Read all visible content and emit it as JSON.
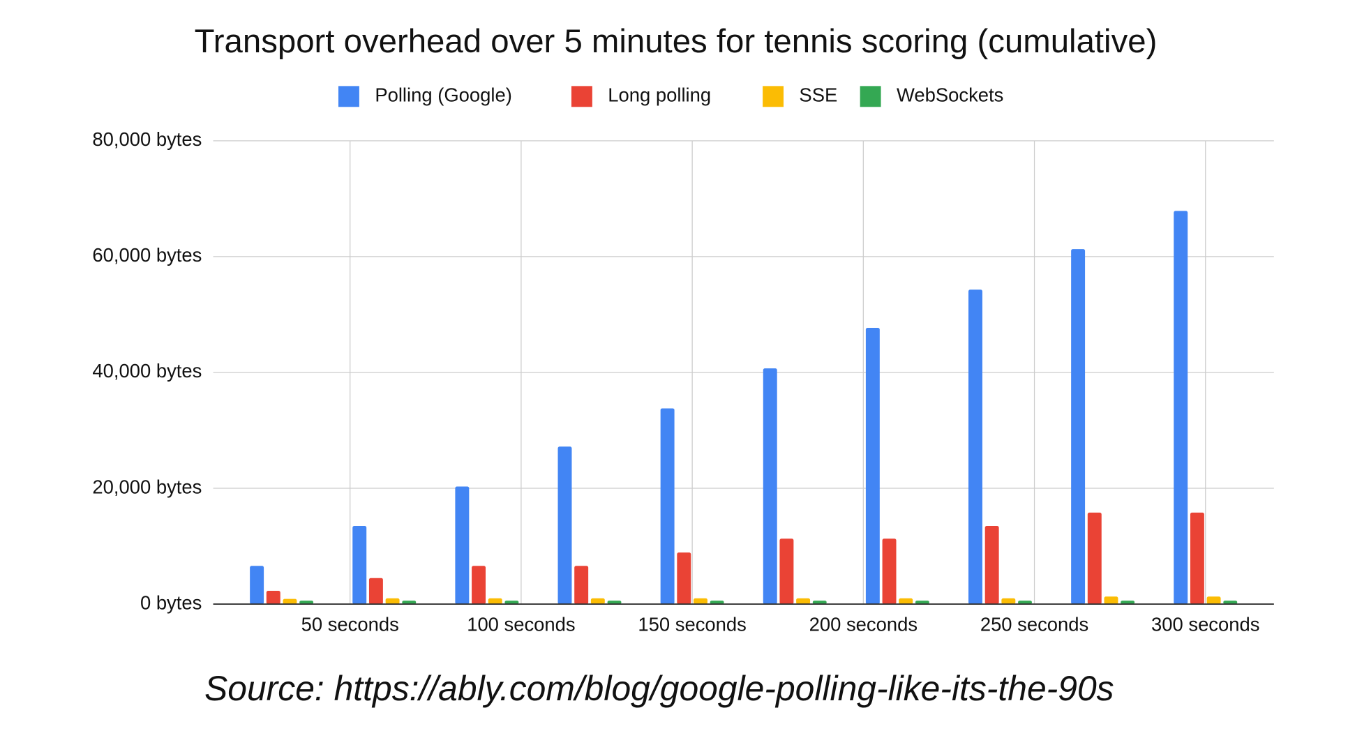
{
  "chart_data": {
    "type": "bar",
    "title": "Transport overhead over 5 minutes for tennis scoring (cumulative)",
    "source": "Source: https://ably.com/blog/google-polling-like-its-the-90s",
    "x": [
      30,
      60,
      90,
      120,
      150,
      180,
      210,
      240,
      270,
      300
    ],
    "series": [
      {
        "name": "Polling (Google)",
        "color": "#4285f4",
        "values": [
          6600,
          13500,
          20300,
          27200,
          33800,
          40700,
          47700,
          54300,
          61300,
          67900
        ]
      },
      {
        "name": "Long polling",
        "color": "#ea4335",
        "values": [
          2300,
          4500,
          6600,
          6600,
          8900,
          11300,
          11300,
          13500,
          15800,
          15800
        ]
      },
      {
        "name": "SSE",
        "color": "#fbbc04",
        "values": [
          900,
          1000,
          1000,
          1000,
          1000,
          1000,
          1000,
          1000,
          1300,
          1300
        ]
      },
      {
        "name": "WebSockets",
        "color": "#34a853",
        "values": [
          600,
          600,
          600,
          600,
          600,
          600,
          600,
          600,
          600,
          600
        ]
      }
    ],
    "xlim": [
      10,
      320
    ],
    "xticks": [
      {
        "value": 50,
        "label": "50 seconds"
      },
      {
        "value": 100,
        "label": "100 seconds"
      },
      {
        "value": 150,
        "label": "150 seconds"
      },
      {
        "value": 200,
        "label": "200 seconds"
      },
      {
        "value": 250,
        "label": "250 seconds"
      },
      {
        "value": 300,
        "label": "300 seconds"
      }
    ],
    "ylim": [
      0,
      80000
    ],
    "yticks": [
      {
        "value": 0,
        "label": "0 bytes"
      },
      {
        "value": 20000,
        "label": "20,000 bytes"
      },
      {
        "value": 40000,
        "label": "40,000 bytes"
      },
      {
        "value": 60000,
        "label": "60,000 bytes"
      },
      {
        "value": 80000,
        "label": "80,000 bytes"
      }
    ],
    "grid": true,
    "legend": "top"
  }
}
